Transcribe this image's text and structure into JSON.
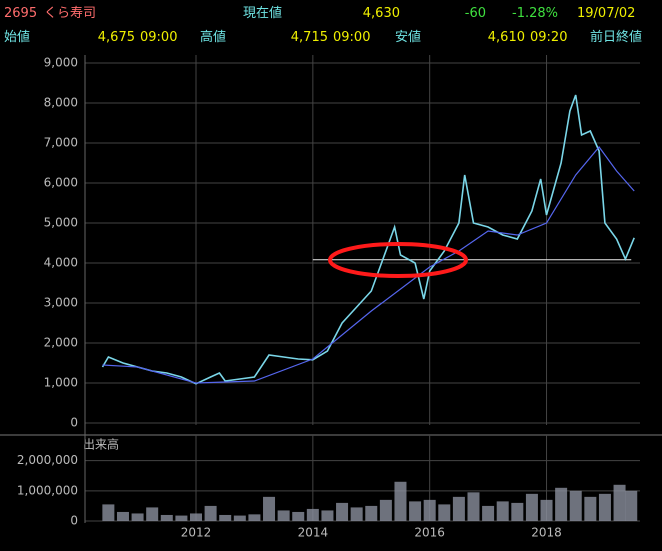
{
  "header": {
    "code": "2695",
    "name": "くら寿司",
    "current_label": "現在値",
    "current": "4,630",
    "change": "-60",
    "change_pct": "-1.28%",
    "date": "19/07/02",
    "open_label": "始値",
    "open": "4,675",
    "open_time": "09:00",
    "high_label": "高値",
    "high": "4,715",
    "high_time": "09:00",
    "low_label": "安値",
    "low": "4,610",
    "low_time": "09:20",
    "prev_close_label": "前日終値"
  },
  "chart_data": [
    {
      "type": "line",
      "xlim": [
        2010.1,
        2019.6
      ],
      "xticks": [
        2012,
        2014,
        2016,
        2018
      ],
      "ylim": [
        0,
        9000
      ],
      "yticks": [
        {
          "value": 0,
          "label": "0"
        },
        {
          "value": 1000,
          "label": "1,000"
        },
        {
          "value": 2000,
          "label": "2,000"
        },
        {
          "value": 3000,
          "label": "3,000"
        },
        {
          "value": 4000,
          "label": "4,000"
        },
        {
          "value": 5000,
          "label": "5,000"
        },
        {
          "value": 6000,
          "label": "6,000"
        },
        {
          "value": 7000,
          "label": "7,000"
        },
        {
          "value": 8000,
          "label": "8,000"
        },
        {
          "value": 9000,
          "label": "9,000"
        }
      ],
      "grid": true,
      "series": [
        {
          "color": "#7ad6e8",
          "x": [
            2010.4,
            2010.5,
            2010.75,
            2011.0,
            2011.25,
            2011.5,
            2011.75,
            2012.0,
            2012.25,
            2012.4,
            2012.5,
            2012.75,
            2013.0,
            2013.25,
            2013.5,
            2013.75,
            2014.0,
            2014.25,
            2014.5,
            2014.75,
            2015.0,
            2015.25,
            2015.4,
            2015.5,
            2015.75,
            2015.9,
            2016.0,
            2016.25,
            2016.5,
            2016.6,
            2016.75,
            2017.0,
            2017.25,
            2017.5,
            2017.75,
            2017.9,
            2018.0,
            2018.25,
            2018.4,
            2018.5,
            2018.6,
            2018.75,
            2018.9,
            2019.0,
            2019.2,
            2019.35,
            2019.5
          ],
          "values": [
            1400,
            1650,
            1500,
            1400,
            1300,
            1250,
            1150,
            980,
            1150,
            1250,
            1050,
            1100,
            1150,
            1700,
            1650,
            1600,
            1580,
            1800,
            2500,
            2900,
            3300,
            4300,
            4900,
            4200,
            4000,
            3100,
            3800,
            4300,
            5000,
            6200,
            5000,
            4900,
            4700,
            4600,
            5300,
            6100,
            5200,
            6500,
            7800,
            8200,
            7200,
            7300,
            6800,
            5000,
            4600,
            4100,
            4630
          ]
        },
        {
          "color": "#5566ee",
          "x": [
            2010.4,
            2011.0,
            2012.0,
            2013.0,
            2014.0,
            2015.0,
            2016.0,
            2016.5,
            2017.0,
            2017.5,
            2018.0,
            2018.5,
            2018.9,
            2019.2,
            2019.5
          ],
          "values": [
            1450,
            1400,
            1000,
            1050,
            1600,
            2800,
            3900,
            4300,
            4800,
            4700,
            5000,
            6200,
            6900,
            6300,
            5800
          ]
        }
      ],
      "reference_line": {
        "value": 4080,
        "x": [
          2014,
          2019.45
        ]
      }
    },
    {
      "type": "bar",
      "title": "出来高",
      "xlim": [
        2010.1,
        2019.6
      ],
      "xticks": [
        {
          "value": 2012,
          "label": "2012"
        },
        {
          "value": 2014,
          "label": "2014"
        },
        {
          "value": 2016,
          "label": "2016"
        },
        {
          "value": 2018,
          "label": "2018"
        }
      ],
      "ylim": [
        0,
        2850000
      ],
      "yticks": [
        {
          "value": 0,
          "label": "0"
        },
        {
          "value": 1000000,
          "label": "1,000,000"
        },
        {
          "value": 2000000,
          "label": "2,000,000"
        }
      ],
      "color": "#8a8f9c",
      "x": [
        2010.5,
        2010.75,
        2011.0,
        2011.25,
        2011.5,
        2011.75,
        2012.0,
        2012.25,
        2012.5,
        2012.75,
        2013.0,
        2013.25,
        2013.5,
        2013.75,
        2014.0,
        2014.25,
        2014.5,
        2014.75,
        2015.0,
        2015.25,
        2015.5,
        2015.75,
        2016.0,
        2016.25,
        2016.5,
        2016.75,
        2017.0,
        2017.25,
        2017.5,
        2017.75,
        2018.0,
        2018.25,
        2018.5,
        2018.75,
        2019.0,
        2019.25,
        2019.45
      ],
      "values": [
        550000,
        300000,
        250000,
        450000,
        200000,
        180000,
        250000,
        500000,
        200000,
        180000,
        220000,
        800000,
        350000,
        300000,
        400000,
        350000,
        600000,
        450000,
        500000,
        700000,
        1300000,
        650000,
        700000,
        550000,
        800000,
        950000,
        500000,
        650000,
        600000,
        900000,
        700000,
        1100000,
        1000000,
        800000,
        900000,
        1200000,
        1000000
      ]
    }
  ]
}
